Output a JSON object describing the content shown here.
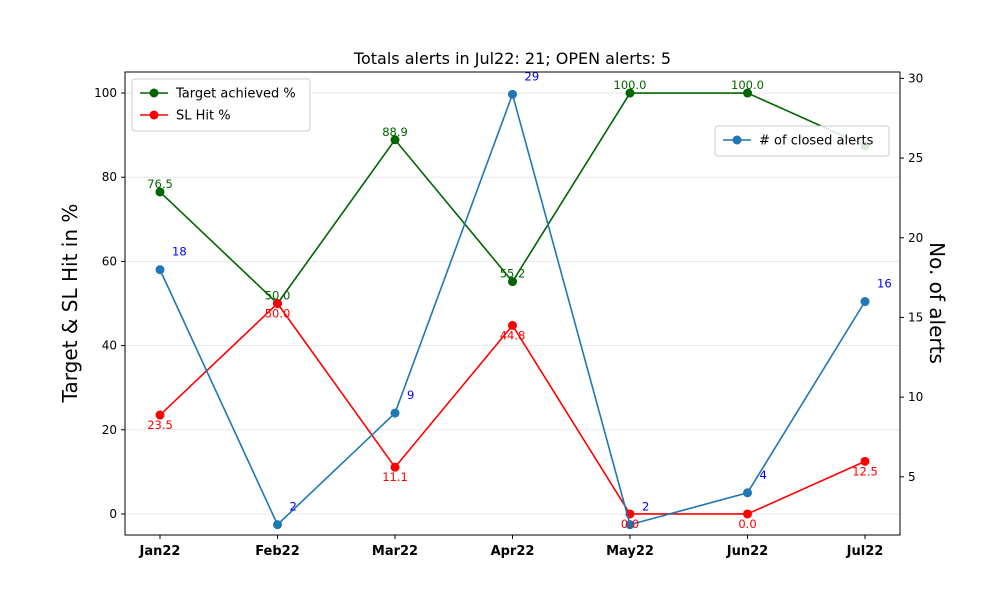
{
  "chart_data": {
    "type": "line",
    "title": "Totals alerts in Jul22: 21; OPEN alerts: 5",
    "categories": [
      "Jan22",
      "Feb22",
      "Mar22",
      "Apr22",
      "May22",
      "Jun22",
      "Jul22"
    ],
    "ylabel": "Target & SL Hit in %",
    "y2label": "No. of alerts",
    "ylim": [
      -5,
      105
    ],
    "y2lim": [
      1.35,
      30.4
    ],
    "yticks": [
      0,
      20,
      40,
      60,
      80,
      100
    ],
    "y2ticks": [
      5,
      10,
      15,
      20,
      25,
      30
    ],
    "grid": "horizontal (left axis)",
    "series": [
      {
        "name": "Target achieved %",
        "axis": "left",
        "color": "#006400",
        "values": [
          76.5,
          50.0,
          88.9,
          55.2,
          100.0,
          100.0,
          87.5
        ],
        "labels": [
          "76.5",
          "50.0",
          "88.9",
          "55.2",
          "100.0",
          "100.0",
          ""
        ]
      },
      {
        "name": "SL Hit %",
        "axis": "left",
        "color": "#ff0000",
        "values": [
          23.5,
          50.0,
          11.1,
          44.8,
          0.0,
          0.0,
          12.5
        ],
        "labels": [
          "23.5",
          "50.0",
          "11.1",
          "44.8",
          "0.0",
          "0.0",
          "12.5"
        ]
      },
      {
        "name": "# of closed alerts",
        "axis": "right",
        "color": "#1f77b4",
        "label_color": "#0000ff",
        "values": [
          18,
          2,
          9,
          29,
          2,
          4,
          16
        ],
        "labels": [
          "18",
          "2",
          "9",
          "29",
          "2",
          "4",
          "16"
        ]
      }
    ],
    "legends": [
      {
        "position": "top-left",
        "entries": [
          "Target achieved %",
          "SL Hit %"
        ]
      },
      {
        "position": "upper-right",
        "entries": [
          "# of closed alerts"
        ]
      }
    ]
  }
}
